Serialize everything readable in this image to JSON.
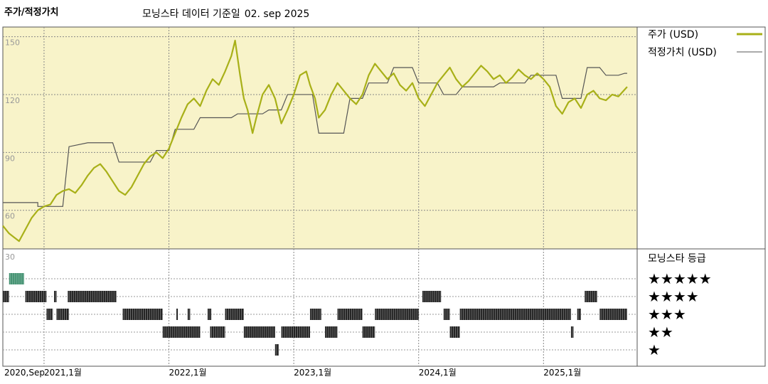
{
  "header": {
    "left_title": "주가/적정가치",
    "source": "모닝스타 데이터 기준일",
    "date": "02. sep 2025"
  },
  "colors": {
    "price": "#a8b018",
    "fair": "#555555",
    "panel_bg": "#f8f3c9",
    "rating_bar": "#222222",
    "rating_top": "#3f8f6e"
  },
  "legend": {
    "price": "주가 (USD)",
    "fair": "적정가치 (USD)",
    "rating_title": "모닝스타 등급",
    "stars": [
      "★★★★★",
      "★★★★",
      "★★★",
      "★★",
      "★"
    ]
  },
  "x_ticks": [
    "2020,Sep",
    "2021,1월",
    "2022,1월",
    "2023,1월",
    "2024,1월",
    "2025,1월"
  ],
  "chart_data": {
    "type": "line",
    "title": "주가/적정가치",
    "xlabel": "",
    "ylabel": "",
    "x_range": [
      "2020-09",
      "2025-09"
    ],
    "ylim": [
      40,
      155
    ],
    "y_ticks": [
      60,
      90,
      120,
      150
    ],
    "rating_axis_label": "30",
    "series": [
      {
        "name": "주가 (USD)",
        "points": [
          [
            2020.67,
            52
          ],
          [
            2020.72,
            48
          ],
          [
            2020.76,
            46
          ],
          [
            2020.8,
            44
          ],
          [
            2020.85,
            50
          ],
          [
            2020.9,
            56
          ],
          [
            2020.95,
            60
          ],
          [
            2021.0,
            62
          ],
          [
            2021.05,
            63
          ],
          [
            2021.1,
            68
          ],
          [
            2021.15,
            70
          ],
          [
            2021.2,
            71
          ],
          [
            2021.25,
            69
          ],
          [
            2021.3,
            73
          ],
          [
            2021.35,
            78
          ],
          [
            2021.4,
            82
          ],
          [
            2021.45,
            84
          ],
          [
            2021.5,
            80
          ],
          [
            2021.55,
            75
          ],
          [
            2021.6,
            70
          ],
          [
            2021.65,
            68
          ],
          [
            2021.7,
            72
          ],
          [
            2021.75,
            78
          ],
          [
            2021.8,
            84
          ],
          [
            2021.85,
            88
          ],
          [
            2021.9,
            90
          ],
          [
            2021.95,
            87
          ],
          [
            2022.0,
            92
          ],
          [
            2022.05,
            100
          ],
          [
            2022.1,
            108
          ],
          [
            2022.15,
            115
          ],
          [
            2022.2,
            118
          ],
          [
            2022.25,
            114
          ],
          [
            2022.3,
            122
          ],
          [
            2022.35,
            128
          ],
          [
            2022.4,
            125
          ],
          [
            2022.45,
            132
          ],
          [
            2022.5,
            140
          ],
          [
            2022.53,
            148
          ],
          [
            2022.57,
            130
          ],
          [
            2022.6,
            118
          ],
          [
            2022.63,
            112
          ],
          [
            2022.67,
            100
          ],
          [
            2022.7,
            108
          ],
          [
            2022.75,
            120
          ],
          [
            2022.8,
            125
          ],
          [
            2022.85,
            118
          ],
          [
            2022.9,
            105
          ],
          [
            2022.95,
            112
          ],
          [
            2023.0,
            120
          ],
          [
            2023.05,
            130
          ],
          [
            2023.1,
            132
          ],
          [
            2023.13,
            125
          ],
          [
            2023.17,
            118
          ],
          [
            2023.2,
            108
          ],
          [
            2023.25,
            112
          ],
          [
            2023.3,
            120
          ],
          [
            2023.35,
            126
          ],
          [
            2023.4,
            122
          ],
          [
            2023.45,
            118
          ],
          [
            2023.5,
            115
          ],
          [
            2023.55,
            120
          ],
          [
            2023.6,
            130
          ],
          [
            2023.65,
            136
          ],
          [
            2023.7,
            132
          ],
          [
            2023.75,
            128
          ],
          [
            2023.8,
            131
          ],
          [
            2023.85,
            125
          ],
          [
            2023.9,
            122
          ],
          [
            2023.95,
            126
          ],
          [
            2024.0,
            118
          ],
          [
            2024.05,
            114
          ],
          [
            2024.1,
            120
          ],
          [
            2024.15,
            126
          ],
          [
            2024.2,
            130
          ],
          [
            2024.25,
            134
          ],
          [
            2024.3,
            128
          ],
          [
            2024.35,
            124
          ],
          [
            2024.4,
            127
          ],
          [
            2024.45,
            131
          ],
          [
            2024.5,
            135
          ],
          [
            2024.55,
            132
          ],
          [
            2024.6,
            128
          ],
          [
            2024.65,
            130
          ],
          [
            2024.7,
            126
          ],
          [
            2024.75,
            129
          ],
          [
            2024.8,
            133
          ],
          [
            2024.85,
            130
          ],
          [
            2024.9,
            128
          ],
          [
            2024.95,
            131
          ],
          [
            2025.0,
            128
          ],
          [
            2025.05,
            124
          ],
          [
            2025.1,
            114
          ],
          [
            2025.15,
            110
          ],
          [
            2025.2,
            116
          ],
          [
            2025.25,
            118
          ],
          [
            2025.3,
            113
          ],
          [
            2025.35,
            120
          ],
          [
            2025.4,
            122
          ],
          [
            2025.45,
            118
          ],
          [
            2025.5,
            117
          ],
          [
            2025.55,
            120
          ],
          [
            2025.6,
            119
          ],
          [
            2025.67,
            124
          ]
        ]
      },
      {
        "name": "적정가치 (USD)",
        "points": [
          [
            2020.67,
            64
          ],
          [
            2020.95,
            64
          ],
          [
            2020.95,
            62
          ],
          [
            2021.15,
            62
          ],
          [
            2021.2,
            93
          ],
          [
            2021.35,
            95
          ],
          [
            2021.55,
            95
          ],
          [
            2021.6,
            85
          ],
          [
            2021.85,
            85
          ],
          [
            2021.9,
            91
          ],
          [
            2022.0,
            91
          ],
          [
            2022.05,
            102
          ],
          [
            2022.2,
            102
          ],
          [
            2022.25,
            108
          ],
          [
            2022.5,
            108
          ],
          [
            2022.55,
            110
          ],
          [
            2022.75,
            110
          ],
          [
            2022.8,
            112
          ],
          [
            2022.9,
            112
          ],
          [
            2022.95,
            120
          ],
          [
            2023.1,
            120
          ],
          [
            2023.15,
            120
          ],
          [
            2023.2,
            100
          ],
          [
            2023.4,
            100
          ],
          [
            2023.45,
            118
          ],
          [
            2023.55,
            118
          ],
          [
            2023.6,
            126
          ],
          [
            2023.75,
            126
          ],
          [
            2023.8,
            134
          ],
          [
            2023.95,
            134
          ],
          [
            2024.0,
            126
          ],
          [
            2024.15,
            126
          ],
          [
            2024.2,
            120
          ],
          [
            2024.3,
            120
          ],
          [
            2024.35,
            124
          ],
          [
            2024.6,
            124
          ],
          [
            2024.65,
            126
          ],
          [
            2024.85,
            126
          ],
          [
            2024.9,
            130
          ],
          [
            2025.1,
            130
          ],
          [
            2025.15,
            118
          ],
          [
            2025.3,
            118
          ],
          [
            2025.35,
            134
          ],
          [
            2025.45,
            134
          ],
          [
            2025.5,
            130
          ],
          [
            2025.6,
            130
          ],
          [
            2025.65,
            131
          ],
          [
            2025.67,
            131
          ]
        ]
      }
    ],
    "ratings": {
      "levels": [
        "★★★★★",
        "★★★★",
        "★★★",
        "★★",
        "★"
      ],
      "segments": [
        {
          "level": 5,
          "start": 2020.72,
          "end": 2020.84
        },
        {
          "level": 4,
          "start": 2020.67,
          "end": 2020.72
        },
        {
          "level": 4,
          "start": 2020.85,
          "end": 2021.02
        },
        {
          "level": 4,
          "start": 2021.08,
          "end": 2021.1
        },
        {
          "level": 4,
          "start": 2021.19,
          "end": 2021.58
        },
        {
          "level": 4,
          "start": 2024.03,
          "end": 2024.18
        },
        {
          "level": 4,
          "start": 2025.33,
          "end": 2025.43
        },
        {
          "level": 3,
          "start": 2021.02,
          "end": 2021.07
        },
        {
          "level": 3,
          "start": 2021.1,
          "end": 2021.2
        },
        {
          "level": 3,
          "start": 2021.63,
          "end": 2021.95
        },
        {
          "level": 3,
          "start": 2022.06,
          "end": 2022.07
        },
        {
          "level": 3,
          "start": 2022.15,
          "end": 2022.17
        },
        {
          "level": 3,
          "start": 2022.31,
          "end": 2022.34
        },
        {
          "level": 3,
          "start": 2022.45,
          "end": 2022.6
        },
        {
          "level": 3,
          "start": 2023.13,
          "end": 2023.22
        },
        {
          "level": 3,
          "start": 2023.35,
          "end": 2023.55
        },
        {
          "level": 3,
          "start": 2023.65,
          "end": 2024.0
        },
        {
          "level": 3,
          "start": 2024.2,
          "end": 2024.25
        },
        {
          "level": 3,
          "start": 2024.33,
          "end": 2025.22
        },
        {
          "level": 3,
          "start": 2025.27,
          "end": 2025.3
        },
        {
          "level": 3,
          "start": 2025.45,
          "end": 2025.67
        },
        {
          "level": 2,
          "start": 2021.95,
          "end": 2022.25
        },
        {
          "level": 2,
          "start": 2022.33,
          "end": 2022.45
        },
        {
          "level": 2,
          "start": 2022.6,
          "end": 2022.85
        },
        {
          "level": 2,
          "start": 2022.9,
          "end": 2023.13
        },
        {
          "level": 2,
          "start": 2023.25,
          "end": 2023.35
        },
        {
          "level": 2,
          "start": 2023.55,
          "end": 2023.65
        },
        {
          "level": 2,
          "start": 2024.25,
          "end": 2024.33
        },
        {
          "level": 2,
          "start": 2025.22,
          "end": 2025.24
        },
        {
          "level": 1,
          "start": 2022.85,
          "end": 2022.88
        }
      ]
    }
  }
}
